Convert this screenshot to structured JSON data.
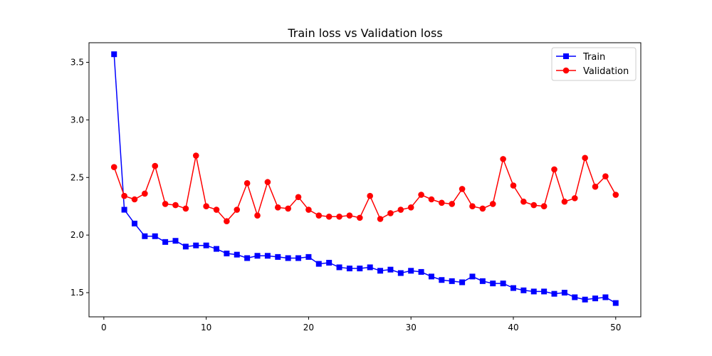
{
  "chart_data": {
    "type": "line",
    "title": "Train loss vs Validation loss",
    "xlabel": "",
    "ylabel": "",
    "xlim": [
      -1.45,
      52.45
    ],
    "ylim": [
      1.29,
      3.67
    ],
    "xticks": [
      0,
      10,
      20,
      30,
      40,
      50
    ],
    "xtick_labels": [
      "0",
      "10",
      "20",
      "30",
      "40",
      "50"
    ],
    "yticks": [
      1.5,
      2.0,
      2.5,
      3.0,
      3.5
    ],
    "ytick_labels": [
      "1.5",
      "2.0",
      "2.5",
      "3.0",
      "3.5"
    ],
    "grid": false,
    "legend_position": "top-right",
    "x": [
      1,
      2,
      3,
      4,
      5,
      6,
      7,
      8,
      9,
      10,
      11,
      12,
      13,
      14,
      15,
      16,
      17,
      18,
      19,
      20,
      21,
      22,
      23,
      24,
      25,
      26,
      27,
      28,
      29,
      30,
      31,
      32,
      33,
      34,
      35,
      36,
      37,
      38,
      39,
      40,
      41,
      42,
      43,
      44,
      45,
      46,
      47,
      48,
      49,
      50
    ],
    "series": [
      {
        "name": "Train",
        "color": "#0000ff",
        "marker": "square",
        "values": [
          3.57,
          2.22,
          2.1,
          1.99,
          1.99,
          1.94,
          1.95,
          1.9,
          1.91,
          1.91,
          1.88,
          1.84,
          1.83,
          1.8,
          1.82,
          1.82,
          1.81,
          1.8,
          1.8,
          1.81,
          1.75,
          1.76,
          1.72,
          1.71,
          1.71,
          1.72,
          1.69,
          1.7,
          1.67,
          1.69,
          1.68,
          1.64,
          1.61,
          1.6,
          1.59,
          1.64,
          1.6,
          1.58,
          1.58,
          1.54,
          1.52,
          1.51,
          1.51,
          1.49,
          1.5,
          1.46,
          1.44,
          1.45,
          1.46,
          1.41
        ]
      },
      {
        "name": "Validation",
        "color": "#ff0000",
        "marker": "circle",
        "values": [
          2.59,
          2.34,
          2.31,
          2.36,
          2.6,
          2.27,
          2.26,
          2.23,
          2.69,
          2.25,
          2.22,
          2.12,
          2.22,
          2.45,
          2.17,
          2.46,
          2.24,
          2.23,
          2.33,
          2.22,
          2.17,
          2.16,
          2.16,
          2.17,
          2.15,
          2.34,
          2.14,
          2.19,
          2.22,
          2.24,
          2.35,
          2.31,
          2.28,
          2.27,
          2.4,
          2.25,
          2.23,
          2.27,
          2.66,
          2.43,
          2.29,
          2.26,
          2.25,
          2.57,
          2.29,
          2.32,
          2.67,
          2.42,
          2.51,
          2.35
        ]
      }
    ]
  }
}
